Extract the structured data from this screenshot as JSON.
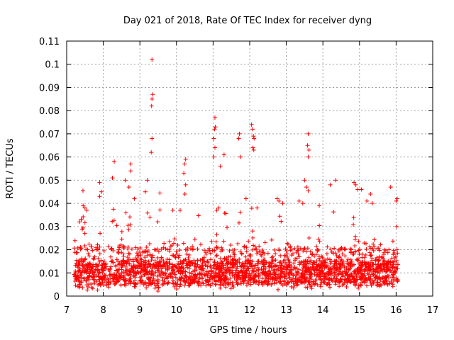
{
  "chart_data": {
    "type": "scatter",
    "title": "Day 021 of 2018, Rate Of TEC Index for receiver dyng",
    "xlabel": "GPS time / hours",
    "ylabel": "ROTI / TECUs",
    "xlim": [
      7,
      17
    ],
    "ylim": [
      0,
      0.11
    ],
    "xticks": [
      "7",
      "8",
      "9",
      "10",
      "11",
      "12",
      "13",
      "14",
      "15",
      "16",
      "17"
    ],
    "yticks": [
      "0",
      "0.01",
      "0.02",
      "0.03",
      "0.04",
      "0.05",
      "0.06",
      "0.07",
      "0.08",
      "0.09",
      "0.1",
      "0.11"
    ],
    "grid": true,
    "marker": "+",
    "color": "#ff0000",
    "series": [
      {
        "name": "ROTI",
        "x_start": 7.2,
        "x_end": 16.05,
        "background_band": [
          0.005,
          0.015
        ],
        "outliers": [
          {
            "x": 9.33,
            "y": 0.102
          },
          {
            "x": 9.35,
            "y": 0.087
          },
          {
            "x": 9.33,
            "y": 0.085
          },
          {
            "x": 9.32,
            "y": 0.082
          },
          {
            "x": 9.33,
            "y": 0.068
          },
          {
            "x": 9.31,
            "y": 0.062
          },
          {
            "x": 11.05,
            "y": 0.077
          },
          {
            "x": 11.06,
            "y": 0.073
          },
          {
            "x": 11.04,
            "y": 0.072
          },
          {
            "x": 11.02,
            "y": 0.068
          },
          {
            "x": 11.05,
            "y": 0.064
          },
          {
            "x": 11.02,
            "y": 0.06
          },
          {
            "x": 11.2,
            "y": 0.056
          },
          {
            "x": 11.3,
            "y": 0.061
          },
          {
            "x": 11.7,
            "y": 0.068
          },
          {
            "x": 11.72,
            "y": 0.07
          },
          {
            "x": 11.75,
            "y": 0.06
          },
          {
            "x": 12.05,
            "y": 0.074
          },
          {
            "x": 12.08,
            "y": 0.072
          },
          {
            "x": 12.1,
            "y": 0.069
          },
          {
            "x": 12.12,
            "y": 0.068
          },
          {
            "x": 12.09,
            "y": 0.064
          },
          {
            "x": 12.11,
            "y": 0.063
          },
          {
            "x": 13.6,
            "y": 0.07
          },
          {
            "x": 13.58,
            "y": 0.065
          },
          {
            "x": 13.62,
            "y": 0.063
          },
          {
            "x": 13.6,
            "y": 0.06
          },
          {
            "x": 13.5,
            "y": 0.05
          },
          {
            "x": 13.55,
            "y": 0.047
          },
          {
            "x": 10.25,
            "y": 0.059
          },
          {
            "x": 10.22,
            "y": 0.057
          },
          {
            "x": 10.2,
            "y": 0.053
          },
          {
            "x": 10.25,
            "y": 0.048
          },
          {
            "x": 10.23,
            "y": 0.044
          },
          {
            "x": 8.3,
            "y": 0.058
          },
          {
            "x": 8.25,
            "y": 0.051
          },
          {
            "x": 8.6,
            "y": 0.05
          },
          {
            "x": 8.75,
            "y": 0.057
          },
          {
            "x": 8.75,
            "y": 0.054
          },
          {
            "x": 8.7,
            "y": 0.047
          },
          {
            "x": 8.85,
            "y": 0.042
          },
          {
            "x": 9.15,
            "y": 0.045
          },
          {
            "x": 9.2,
            "y": 0.05
          },
          {
            "x": 7.9,
            "y": 0.049
          },
          {
            "x": 7.95,
            "y": 0.045
          },
          {
            "x": 7.9,
            "y": 0.043
          },
          {
            "x": 7.45,
            "y": 0.039
          },
          {
            "x": 7.5,
            "y": 0.038
          },
          {
            "x": 7.55,
            "y": 0.037
          },
          {
            "x": 7.4,
            "y": 0.033
          },
          {
            "x": 7.35,
            "y": 0.032
          },
          {
            "x": 14.35,
            "y": 0.05
          },
          {
            "x": 14.2,
            "y": 0.048
          },
          {
            "x": 14.85,
            "y": 0.049
          },
          {
            "x": 14.9,
            "y": 0.048
          },
          {
            "x": 14.95,
            "y": 0.046
          },
          {
            "x": 15.05,
            "y": 0.046
          },
          {
            "x": 15.3,
            "y": 0.044
          },
          {
            "x": 15.35,
            "y": 0.04
          },
          {
            "x": 15.2,
            "y": 0.041
          },
          {
            "x": 15.85,
            "y": 0.047
          },
          {
            "x": 16.0,
            "y": 0.041
          },
          {
            "x": 16.03,
            "y": 0.042
          },
          {
            "x": 12.75,
            "y": 0.042
          },
          {
            "x": 12.8,
            "y": 0.041
          },
          {
            "x": 12.9,
            "y": 0.04
          },
          {
            "x": 13.35,
            "y": 0.041
          },
          {
            "x": 13.45,
            "y": 0.04
          },
          {
            "x": 13.9,
            "y": 0.039
          },
          {
            "x": 11.1,
            "y": 0.037
          },
          {
            "x": 11.15,
            "y": 0.038
          },
          {
            "x": 11.9,
            "y": 0.042
          },
          {
            "x": 12.2,
            "y": 0.038
          },
          {
            "x": 9.9,
            "y": 0.037
          },
          {
            "x": 10.1,
            "y": 0.037
          },
          {
            "x": 16.02,
            "y": 0.03
          }
        ]
      }
    ]
  }
}
